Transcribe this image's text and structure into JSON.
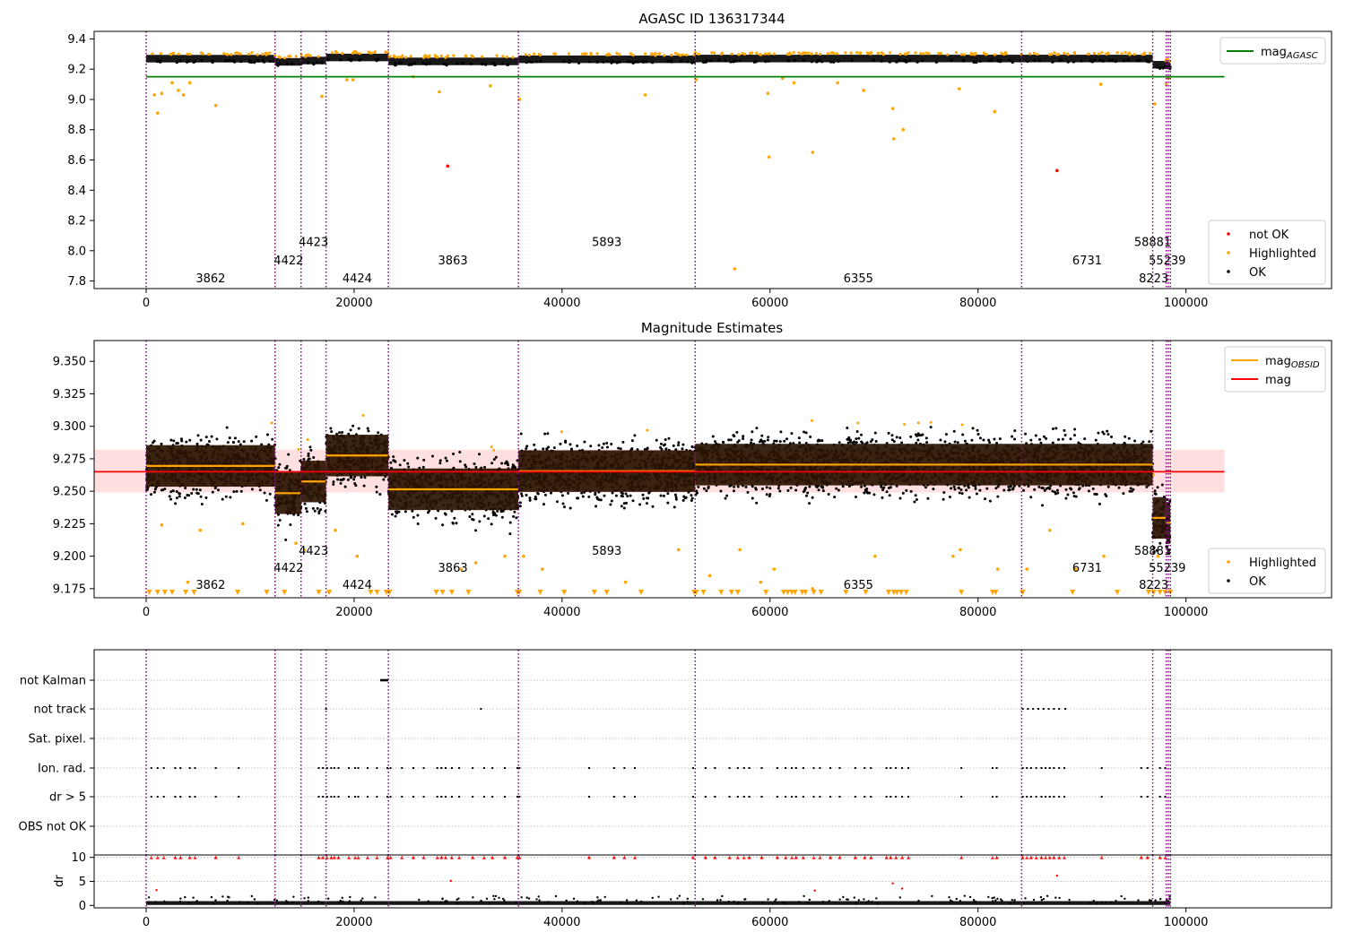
{
  "colors": {
    "ok": "#000000",
    "highlighted": "#ffa500",
    "not_ok": "#ff0000",
    "obs_boundary": "#800080",
    "mag_agasc": "#008000",
    "mag_obsid": "#ffa500",
    "mag": "#ff0000",
    "mag_band": "#ffcccc",
    "obsid_box": "#2a1200",
    "grid": "#b0b0b0"
  },
  "chart_data": [
    {
      "id": "agasc",
      "type": "scatter",
      "title": "AGASC ID 136317344",
      "xlim": [
        -5000,
        114000
      ],
      "ylim": [
        7.75,
        9.45
      ],
      "xticks": [
        0,
        20000,
        40000,
        60000,
        80000,
        100000
      ],
      "yticks": [
        7.8,
        8.0,
        8.2,
        8.4,
        8.6,
        8.8,
        9.0,
        9.2,
        9.4
      ],
      "mag_agasc": 9.15,
      "mag_agasc_range": [
        0,
        103700
      ],
      "legend_top": {
        "position": "top-right",
        "entries": [
          {
            "label": "mag",
            "sub": "AGASC",
            "kind": "line",
            "color": "#008000"
          }
        ]
      },
      "legend_bottom": {
        "position": "bottom-right",
        "entries": [
          {
            "label": "not OK",
            "kind": "dot",
            "color": "#ff0000"
          },
          {
            "label": "Highlighted",
            "kind": "dot",
            "color": "#ffa500"
          },
          {
            "label": "OK",
            "kind": "dot",
            "color": "#000000"
          }
        ]
      },
      "highlighted_outliers": [
        [
          800,
          9.03
        ],
        [
          1100,
          8.91
        ],
        [
          1500,
          9.04
        ],
        [
          2500,
          9.11
        ],
        [
          3100,
          9.06
        ],
        [
          3600,
          9.03
        ],
        [
          4200,
          9.11
        ],
        [
          6700,
          8.96
        ],
        [
          16900,
          9.02
        ],
        [
          19300,
          9.13
        ],
        [
          19900,
          9.13
        ],
        [
          25700,
          9.15
        ],
        [
          28200,
          9.05
        ],
        [
          33100,
          9.09
        ],
        [
          35900,
          9.0
        ],
        [
          48000,
          9.03
        ],
        [
          52900,
          9.13
        ],
        [
          56600,
          7.88
        ],
        [
          59800,
          9.04
        ],
        [
          59900,
          8.62
        ],
        [
          61200,
          9.14
        ],
        [
          62300,
          9.11
        ],
        [
          64100,
          8.65
        ],
        [
          66500,
          9.11
        ],
        [
          69000,
          9.06
        ],
        [
          71800,
          8.94
        ],
        [
          71900,
          8.74
        ],
        [
          72800,
          8.8
        ],
        [
          78200,
          9.07
        ],
        [
          81600,
          8.92
        ],
        [
          91800,
          9.1
        ],
        [
          97000,
          8.97
        ],
        [
          98300,
          9.14
        ],
        [
          98100,
          9.1
        ]
      ],
      "not_ok_points": [
        [
          29000,
          8.56
        ],
        [
          87600,
          8.53
        ]
      ]
    },
    {
      "id": "estimates",
      "type": "scatter",
      "title": "Magnitude Estimates",
      "xlim": [
        -5000,
        114000
      ],
      "ylim": [
        9.168,
        9.366
      ],
      "xticks": [
        0,
        20000,
        40000,
        60000,
        80000,
        100000
      ],
      "yticks": [
        9.175,
        9.2,
        9.225,
        9.25,
        9.275,
        9.3,
        9.325,
        9.35
      ],
      "mag": 9.265,
      "mag_band": [
        9.249,
        9.282
      ],
      "mag_range": [
        -5000,
        103700
      ],
      "legend_top": {
        "position": "top-right",
        "entries": [
          {
            "label": "mag",
            "sub": "OBSID",
            "kind": "line",
            "color": "#ffa500"
          },
          {
            "label": "mag",
            "kind": "line",
            "color": "#ff0000"
          }
        ]
      },
      "legend_bottom": {
        "position": "bottom-right",
        "entries": [
          {
            "label": "Highlighted",
            "kind": "dot",
            "color": "#ffa500"
          },
          {
            "label": "OK",
            "kind": "dot",
            "color": "#000000"
          }
        ]
      },
      "below_range_markers": [
        300,
        1100,
        1800,
        2500,
        3800,
        4600,
        8800,
        11600,
        13300,
        16600,
        17600,
        21600,
        22200,
        23100,
        23400,
        27900,
        28500,
        29400,
        31000,
        35700,
        35900,
        37900,
        40200,
        43100,
        44300,
        47600,
        52700,
        52900,
        53600,
        55300,
        56300,
        56900,
        59600,
        61300,
        61700,
        62100,
        62400,
        63100,
        63400,
        64200,
        64900,
        67300,
        69200,
        71400,
        71900,
        72200,
        72600,
        73100,
        78400,
        81400,
        81700,
        84300,
        89100,
        93400,
        96400,
        96900,
        97500,
        98000,
        98500
      ],
      "highlighted_outliers": [
        [
          1500,
          9.224
        ],
        [
          4000,
          9.18
        ],
        [
          5200,
          9.22
        ],
        [
          9300,
          9.225
        ],
        [
          14400,
          9.21
        ],
        [
          15200,
          9.205
        ],
        [
          18200,
          9.22
        ],
        [
          20300,
          9.2
        ],
        [
          30300,
          9.19
        ],
        [
          31700,
          9.195
        ],
        [
          34500,
          9.2
        ],
        [
          36300,
          9.2
        ],
        [
          38100,
          9.19
        ],
        [
          46100,
          9.18
        ],
        [
          51200,
          9.205
        ],
        [
          54200,
          9.185
        ],
        [
          57100,
          9.205
        ],
        [
          59100,
          9.18
        ],
        [
          60400,
          9.19
        ],
        [
          64100,
          9.175
        ],
        [
          70100,
          9.2
        ],
        [
          77600,
          9.2
        ],
        [
          78300,
          9.205
        ],
        [
          81900,
          9.19
        ],
        [
          84700,
          9.19
        ],
        [
          86900,
          9.22
        ],
        [
          89400,
          9.19
        ],
        [
          92100,
          9.2
        ],
        [
          97300,
          9.2
        ]
      ]
    },
    {
      "id": "flags",
      "type": "scatter",
      "xlim": [
        -5000,
        114000
      ],
      "xticks": [
        0,
        20000,
        40000,
        60000,
        80000,
        100000
      ],
      "categories": [
        "not Kalman",
        "not track",
        "Sat. pixel.",
        "Ion. rad.",
        "dr > 5",
        "OBS not OK"
      ],
      "flag_events": {
        "not Kalman": [
          22600,
          22800,
          23000,
          23200
        ],
        "not track": [
          17300,
          32200,
          84300,
          84800,
          85300,
          85800,
          86300,
          86800,
          87300,
          87800,
          88400
        ],
        "Sat. pixel.": [],
        "Ion. rad.": [
          500,
          1100,
          1700,
          2800,
          3300,
          4200,
          4700,
          6700,
          8900,
          16600,
          17000,
          17400,
          17800,
          18100,
          18500,
          19500,
          20100,
          20400,
          21300,
          22200,
          23200,
          23500,
          24600,
          25700,
          26700,
          28000,
          28400,
          28800,
          29400,
          30100,
          31400,
          32500,
          33300,
          34500,
          35700,
          35900,
          42600,
          45000,
          46000,
          47000,
          52600,
          53800,
          54700,
          56100,
          56900,
          57500,
          58000,
          59200,
          60700,
          61500,
          62100,
          62500,
          63200,
          64200,
          64800,
          65800,
          66700,
          68200,
          69100,
          69700,
          71200,
          71600,
          72100,
          72700,
          73300,
          78400,
          81400,
          81800,
          84300,
          84700,
          85100,
          85600,
          86100,
          86500,
          86900,
          87300,
          87800,
          88300,
          91900,
          95700,
          96300,
          97500,
          98000
        ],
        "dr > 5": [
          500,
          1100,
          1700,
          2800,
          3300,
          4200,
          4700,
          6700,
          8900,
          16600,
          17000,
          17400,
          17800,
          18100,
          18500,
          19500,
          20100,
          20400,
          21300,
          22200,
          23200,
          23500,
          24600,
          25700,
          26700,
          28000,
          28400,
          28800,
          29400,
          30100,
          31400,
          32500,
          33300,
          34500,
          35700,
          35900,
          42600,
          45000,
          46000,
          47000,
          52600,
          53800,
          54700,
          56100,
          56900,
          57500,
          58000,
          59200,
          60700,
          61500,
          62100,
          62500,
          63200,
          64200,
          64800,
          65800,
          66700,
          68200,
          69100,
          69700,
          71200,
          71600,
          72100,
          72700,
          73300,
          78400,
          81400,
          81800,
          84300,
          84700,
          85100,
          85600,
          86100,
          86500,
          86900,
          87300,
          87800,
          88300,
          91900,
          95700,
          96300,
          97500,
          98000
        ],
        "OBS not OK": []
      }
    },
    {
      "id": "dr",
      "type": "scatter",
      "ylabel": "dr",
      "xlim": [
        -5000,
        114000
      ],
      "ylim": [
        -0.5,
        10.5
      ],
      "xticks": [
        0,
        20000,
        40000,
        60000,
        80000,
        100000
      ],
      "yticks": [
        0,
        5,
        10
      ],
      "clipped_markers": [
        500,
        1100,
        1700,
        2800,
        3300,
        4200,
        4700,
        6700,
        8900,
        16600,
        17000,
        17400,
        17800,
        18100,
        18500,
        19500,
        20100,
        20400,
        21300,
        22200,
        23200,
        23500,
        24600,
        25700,
        26700,
        28000,
        28400,
        28800,
        29400,
        30100,
        31400,
        32500,
        33300,
        34500,
        35700,
        35900,
        42600,
        45000,
        46000,
        47000,
        52600,
        53800,
        54700,
        56100,
        56900,
        57500,
        58000,
        59200,
        60700,
        61500,
        62100,
        62500,
        63200,
        64200,
        64800,
        65800,
        66700,
        68200,
        69100,
        69700,
        71200,
        71600,
        72100,
        72700,
        73300,
        78400,
        81400,
        81800,
        84300,
        84700,
        85100,
        85600,
        86100,
        86500,
        86900,
        87300,
        87800,
        88300,
        91900,
        95700,
        96300,
        97500,
        98000
      ],
      "red_points": [
        [
          1000,
          3.2
        ],
        [
          29300,
          5.1
        ],
        [
          64300,
          3.1
        ],
        [
          71800,
          4.6
        ],
        [
          72700,
          3.5
        ],
        [
          87600,
          6.2
        ]
      ]
    }
  ],
  "observations": [
    {
      "obsid": "3862",
      "start": 0,
      "end": 12400,
      "mag_obsid": 9.2695,
      "label_x": 6200,
      "label_y": 7.82,
      "label_y2": 9.1785
    },
    {
      "obsid": "4422",
      "start": 12400,
      "end": 14900,
      "mag_obsid": 9.2485,
      "label_x": 13700,
      "label_y": 7.94,
      "label_y2": 9.1915
    },
    {
      "obsid": "4423",
      "start": 14900,
      "end": 17300,
      "mag_obsid": 9.2575,
      "label_x": 16100,
      "label_y": 8.06,
      "label_y2": 9.2045
    },
    {
      "obsid": "4424",
      "start": 17300,
      "end": 23300,
      "mag_obsid": 9.2775,
      "label_x": 20300,
      "label_y": 7.82,
      "label_y2": 9.1785
    },
    {
      "obsid": "3863",
      "start": 23300,
      "end": 35800,
      "mag_obsid": 9.2515,
      "label_x": 29500,
      "label_y": 7.94,
      "label_y2": 9.1915
    },
    {
      "obsid": "5893",
      "start": 35800,
      "end": 52800,
      "mag_obsid": 9.2655,
      "label_x": 44300,
      "label_y": 8.06,
      "label_y2": 9.2045
    },
    {
      "obsid": "6355",
      "start": 52800,
      "end": 84200,
      "mag_obsid": 9.2705,
      "label_x": 68500,
      "label_y": 7.82,
      "label_y2": 9.1785
    },
    {
      "obsid": "6731",
      "start": 84200,
      "end": 96800,
      "mag_obsid": 9.2705,
      "label_x": 90500,
      "label_y": 7.94,
      "label_y2": 9.1915
    },
    {
      "obsid": "58881",
      "start": 96800,
      "end": 98100,
      "mag_obsid": 9.2295,
      "label_x": 96800,
      "label_y": 8.06,
      "label_y2": 9.2045
    },
    {
      "obsid": "55239",
      "start": 98100,
      "end": 98300,
      "mag_obsid": 9.2255,
      "label_x": 98200,
      "label_y": 7.94,
      "label_y2": 9.1915
    },
    {
      "obsid": "8223",
      "start": 98300,
      "end": 98500,
      "mag_obsid": 9.2255,
      "label_x": 96900,
      "label_y": 7.82,
      "label_y2": 9.1785
    }
  ]
}
